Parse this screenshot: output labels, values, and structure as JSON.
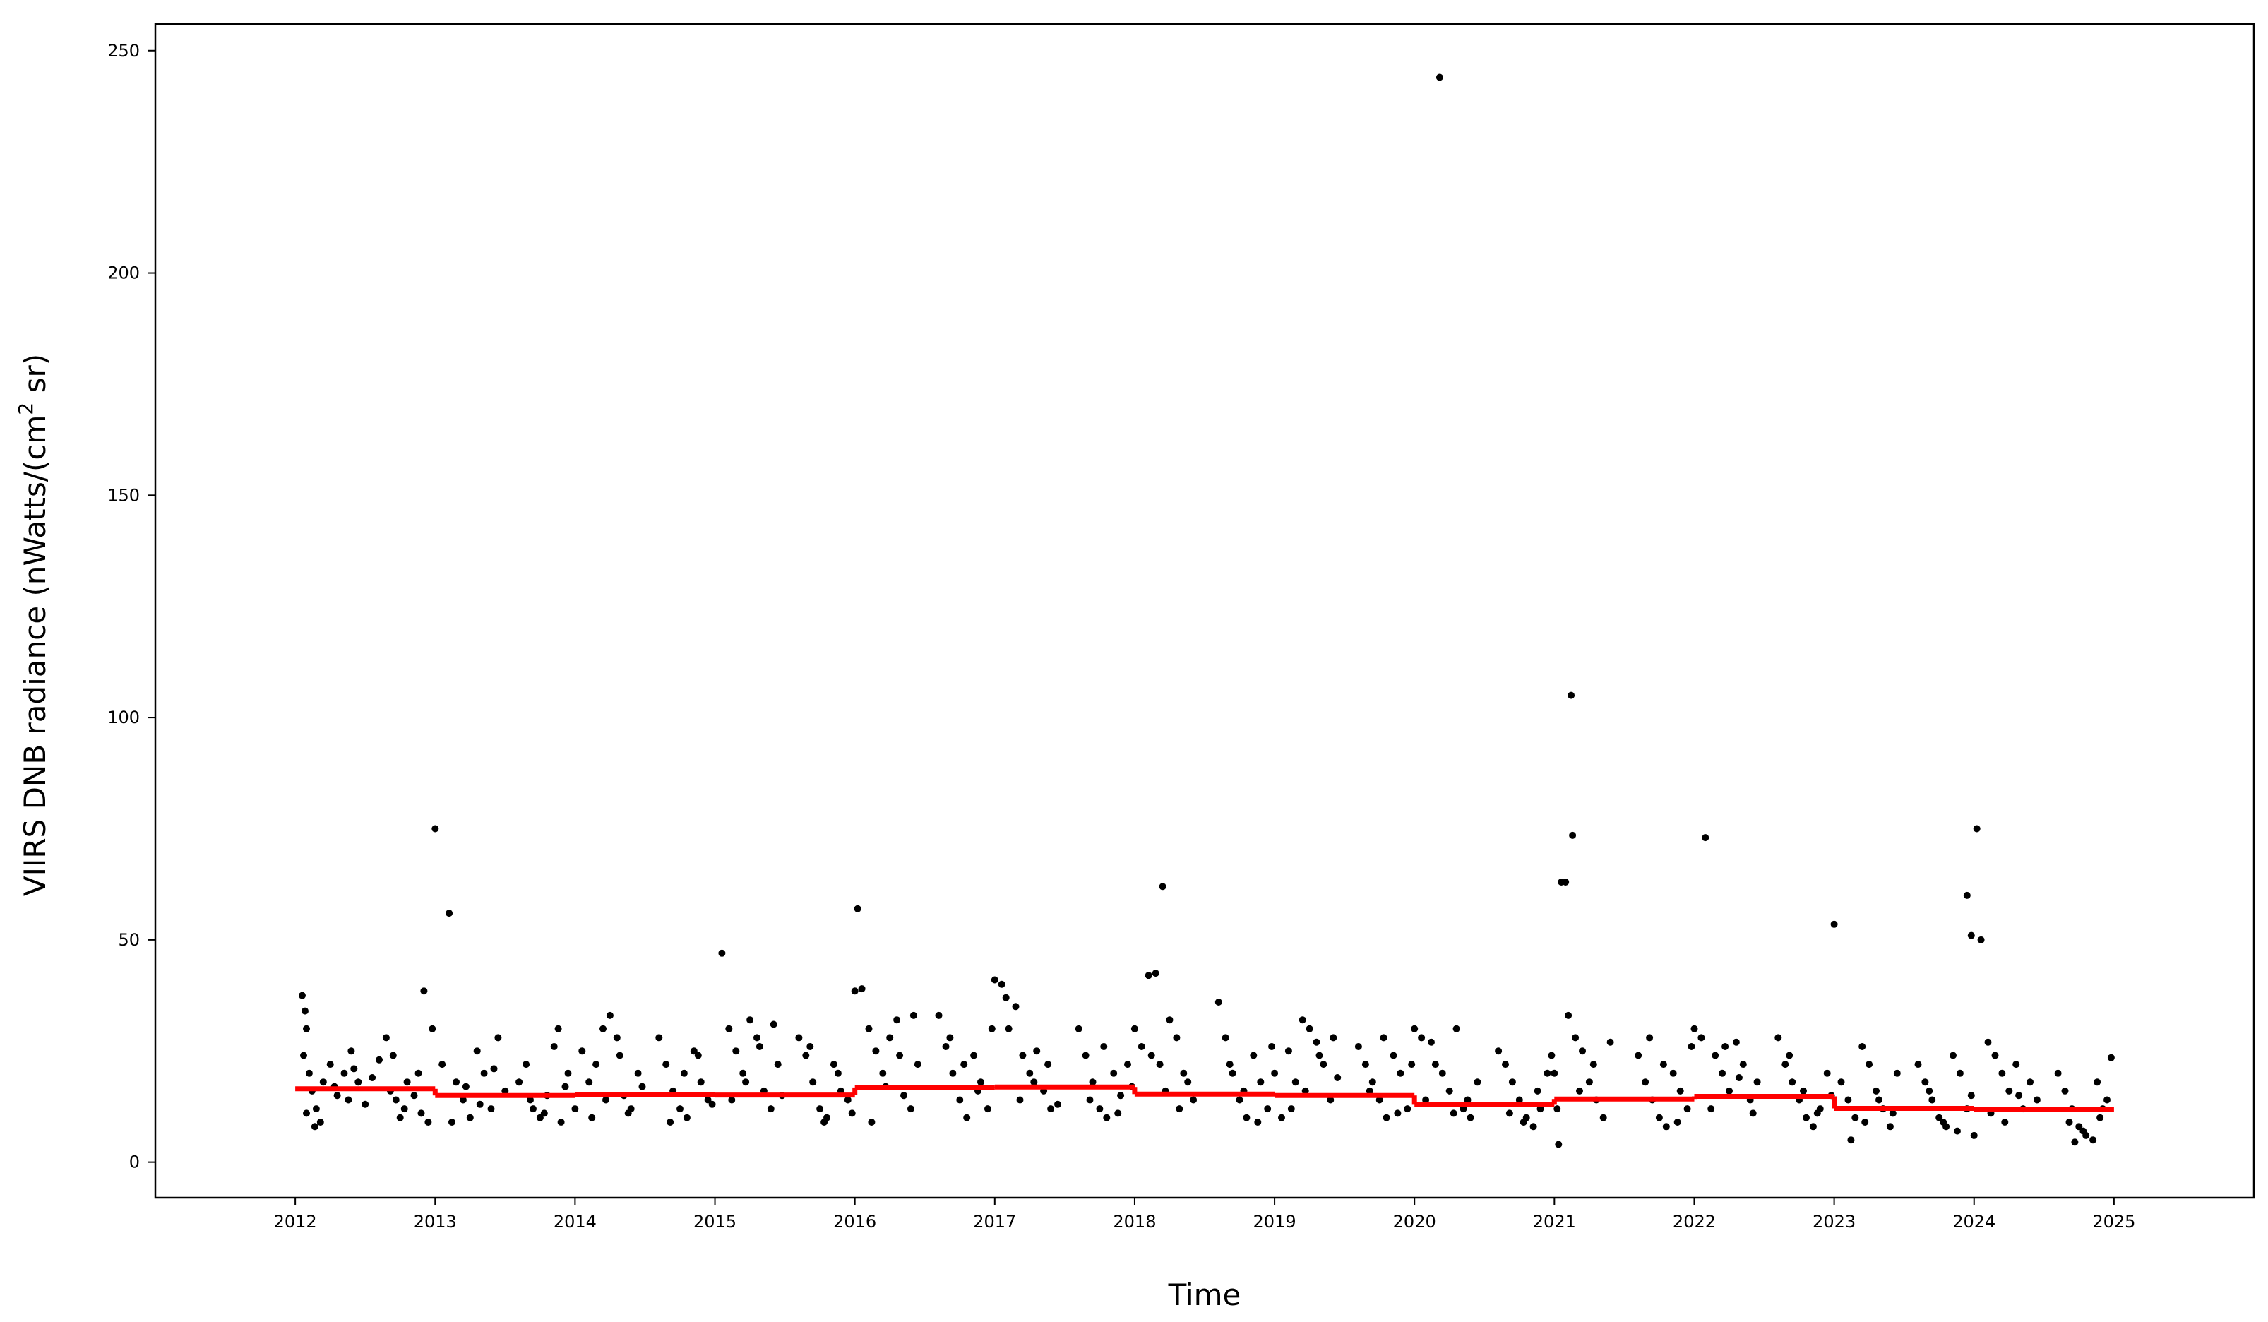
{
  "chart_data": {
    "type": "scatter",
    "title": "",
    "xlabel": "Time",
    "ylabel_main": "VIIRS DNB radiance (nWatts/(cm",
    "ylabel_sup": "2",
    "ylabel_end": " sr)",
    "xlim": [
      2011.0,
      2026.0
    ],
    "ylim": [
      -8,
      256
    ],
    "x_ticks": [
      2012,
      2013,
      2014,
      2015,
      2016,
      2017,
      2018,
      2019,
      2020,
      2021,
      2022,
      2023,
      2024,
      2025
    ],
    "x_tick_labels": [
      "2012",
      "2013",
      "2014",
      "2015",
      "2016",
      "2017",
      "2018",
      "2019",
      "2020",
      "2021",
      "2022",
      "2023",
      "2024",
      "2025"
    ],
    "y_ticks": [
      0,
      50,
      100,
      150,
      200,
      250
    ],
    "y_tick_labels": [
      "0",
      "50",
      "100",
      "150",
      "200",
      "250"
    ],
    "grid": false,
    "colors": {
      "points": "#000000",
      "annual_mean": "#ff0000"
    },
    "annual_mean": [
      {
        "start": 2012.0,
        "end": 2013.0,
        "value": 16.5
      },
      {
        "start": 2013.0,
        "end": 2014.0,
        "value": 15.0
      },
      {
        "start": 2014.0,
        "end": 2015.0,
        "value": 15.2
      },
      {
        "start": 2015.0,
        "end": 2016.0,
        "value": 15.1
      },
      {
        "start": 2016.0,
        "end": 2017.0,
        "value": 16.8
      },
      {
        "start": 2017.0,
        "end": 2018.0,
        "value": 16.9
      },
      {
        "start": 2018.0,
        "end": 2019.0,
        "value": 15.3
      },
      {
        "start": 2019.0,
        "end": 2020.0,
        "value": 15.0
      },
      {
        "start": 2020.0,
        "end": 2021.0,
        "value": 12.9
      },
      {
        "start": 2021.0,
        "end": 2022.0,
        "value": 14.2
      },
      {
        "start": 2022.0,
        "end": 2023.0,
        "value": 14.8
      },
      {
        "start": 2023.0,
        "end": 2024.0,
        "value": 12.1
      },
      {
        "start": 2024.0,
        "end": 2025.0,
        "value": 11.8
      }
    ],
    "points": [
      [
        2012.05,
        37.5
      ],
      [
        2012.07,
        34
      ],
      [
        2012.08,
        30
      ],
      [
        2012.06,
        24
      ],
      [
        2012.1,
        20
      ],
      [
        2012.12,
        16
      ],
      [
        2012.15,
        12
      ],
      [
        2012.14,
        8
      ],
      [
        2012.2,
        18
      ],
      [
        2012.25,
        22
      ],
      [
        2012.3,
        15
      ],
      [
        2012.35,
        20
      ],
      [
        2012.4,
        25
      ],
      [
        2012.45,
        18
      ],
      [
        2012.5,
        13
      ],
      [
        2012.08,
        11
      ],
      [
        2012.18,
        9
      ],
      [
        2012.28,
        17
      ],
      [
        2012.38,
        14
      ],
      [
        2012.42,
        21
      ],
      [
        2012.55,
        19
      ],
      [
        2012.6,
        23
      ],
      [
        2012.65,
        28
      ],
      [
        2012.7,
        24
      ],
      [
        2012.72,
        14
      ],
      [
        2012.75,
        10
      ],
      [
        2012.78,
        12
      ],
      [
        2012.8,
        18
      ],
      [
        2012.85,
        15
      ],
      [
        2012.9,
        11
      ],
      [
        2012.88,
        20
      ],
      [
        2012.92,
        38.5
      ],
      [
        2012.98,
        30
      ],
      [
        2012.95,
        9
      ],
      [
        2012.68,
        16
      ],
      [
        2013.0,
        75
      ],
      [
        2013.1,
        56
      ],
      [
        2013.05,
        22
      ],
      [
        2013.15,
        18
      ],
      [
        2013.2,
        14
      ],
      [
        2013.25,
        10
      ],
      [
        2013.3,
        25
      ],
      [
        2013.35,
        20
      ],
      [
        2013.4,
        12
      ],
      [
        2013.45,
        28
      ],
      [
        2013.5,
        16
      ],
      [
        2013.12,
        9
      ],
      [
        2013.22,
        17
      ],
      [
        2013.32,
        13
      ],
      [
        2013.42,
        21
      ],
      [
        2013.6,
        18
      ],
      [
        2013.65,
        22
      ],
      [
        2013.7,
        12
      ],
      [
        2013.75,
        10
      ],
      [
        2013.8,
        15
      ],
      [
        2013.85,
        26
      ],
      [
        2013.9,
        9
      ],
      [
        2013.95,
        20
      ],
      [
        2013.68,
        14
      ],
      [
        2013.78,
        11
      ],
      [
        2013.88,
        30
      ],
      [
        2013.93,
        17
      ],
      [
        2014.0,
        12
      ],
      [
        2014.05,
        25
      ],
      [
        2014.1,
        18
      ],
      [
        2014.15,
        22
      ],
      [
        2014.2,
        30
      ],
      [
        2014.25,
        33
      ],
      [
        2014.3,
        28
      ],
      [
        2014.35,
        15
      ],
      [
        2014.4,
        12
      ],
      [
        2014.45,
        20
      ],
      [
        2014.12,
        10
      ],
      [
        2014.22,
        14
      ],
      [
        2014.32,
        24
      ],
      [
        2014.38,
        11
      ],
      [
        2014.48,
        17
      ],
      [
        2014.6,
        28
      ],
      [
        2014.65,
        22
      ],
      [
        2014.7,
        16
      ],
      [
        2014.75,
        12
      ],
      [
        2014.8,
        10
      ],
      [
        2014.85,
        25
      ],
      [
        2014.9,
        18
      ],
      [
        2014.95,
        14
      ],
      [
        2014.68,
        9
      ],
      [
        2014.78,
        20
      ],
      [
        2014.88,
        24
      ],
      [
        2014.98,
        13
      ],
      [
        2015.05,
        47
      ],
      [
        2015.1,
        30
      ],
      [
        2015.15,
        25
      ],
      [
        2015.2,
        20
      ],
      [
        2015.25,
        32
      ],
      [
        2015.3,
        28
      ],
      [
        2015.35,
        16
      ],
      [
        2015.4,
        12
      ],
      [
        2015.45,
        22
      ],
      [
        2015.12,
        14
      ],
      [
        2015.22,
        18
      ],
      [
        2015.32,
        26
      ],
      [
        2015.42,
        31
      ],
      [
        2015.48,
        15
      ],
      [
        2015.6,
        28
      ],
      [
        2015.65,
        24
      ],
      [
        2015.7,
        18
      ],
      [
        2015.75,
        12
      ],
      [
        2015.8,
        10
      ],
      [
        2015.85,
        22
      ],
      [
        2015.9,
        16
      ],
      [
        2015.95,
        14
      ],
      [
        2015.68,
        26
      ],
      [
        2015.78,
        9
      ],
      [
        2015.88,
        20
      ],
      [
        2015.98,
        11
      ],
      [
        2016.0,
        38.5
      ],
      [
        2016.05,
        39
      ],
      [
        2016.02,
        57
      ],
      [
        2016.1,
        30
      ],
      [
        2016.15,
        25
      ],
      [
        2016.2,
        20
      ],
      [
        2016.25,
        28
      ],
      [
        2016.3,
        32
      ],
      [
        2016.35,
        15
      ],
      [
        2016.4,
        12
      ],
      [
        2016.45,
        22
      ],
      [
        2016.12,
        9
      ],
      [
        2016.22,
        17
      ],
      [
        2016.32,
        24
      ],
      [
        2016.42,
        33
      ],
      [
        2016.6,
        33
      ],
      [
        2016.65,
        26
      ],
      [
        2016.7,
        20
      ],
      [
        2016.75,
        14
      ],
      [
        2016.8,
        10
      ],
      [
        2016.85,
        24
      ],
      [
        2016.9,
        18
      ],
      [
        2016.95,
        12
      ],
      [
        2016.68,
        28
      ],
      [
        2016.78,
        22
      ],
      [
        2016.88,
        16
      ],
      [
        2016.98,
        30
      ],
      [
        2017.0,
        41
      ],
      [
        2017.05,
        40
      ],
      [
        2017.08,
        37
      ],
      [
        2017.15,
        35
      ],
      [
        2017.2,
        24
      ],
      [
        2017.25,
        20
      ],
      [
        2017.3,
        25
      ],
      [
        2017.35,
        16
      ],
      [
        2017.4,
        12
      ],
      [
        2017.1,
        30
      ],
      [
        2017.18,
        14
      ],
      [
        2017.28,
        18
      ],
      [
        2017.38,
        22
      ],
      [
        2017.45,
        13
      ],
      [
        2017.6,
        30
      ],
      [
        2017.65,
        24
      ],
      [
        2017.7,
        18
      ],
      [
        2017.75,
        12
      ],
      [
        2017.8,
        10
      ],
      [
        2017.85,
        20
      ],
      [
        2017.9,
        15
      ],
      [
        2017.95,
        22
      ],
      [
        2017.68,
        14
      ],
      [
        2017.78,
        26
      ],
      [
        2017.88,
        11
      ],
      [
        2017.98,
        17
      ],
      [
        2018.0,
        30
      ],
      [
        2018.1,
        42
      ],
      [
        2018.15,
        42.5
      ],
      [
        2018.2,
        62
      ],
      [
        2018.25,
        32
      ],
      [
        2018.3,
        28
      ],
      [
        2018.35,
        20
      ],
      [
        2018.12,
        24
      ],
      [
        2018.22,
        16
      ],
      [
        2018.32,
        12
      ],
      [
        2018.38,
        18
      ],
      [
        2018.42,
        14
      ],
      [
        2018.05,
        26
      ],
      [
        2018.18,
        22
      ],
      [
        2018.6,
        36
      ],
      [
        2018.65,
        28
      ],
      [
        2018.7,
        20
      ],
      [
        2018.75,
        14
      ],
      [
        2018.8,
        10
      ],
      [
        2018.85,
        24
      ],
      [
        2018.9,
        18
      ],
      [
        2018.95,
        12
      ],
      [
        2018.68,
        22
      ],
      [
        2018.78,
        16
      ],
      [
        2018.88,
        9
      ],
      [
        2018.98,
        26
      ],
      [
        2019.0,
        20
      ],
      [
        2019.1,
        25
      ],
      [
        2019.15,
        18
      ],
      [
        2019.2,
        32
      ],
      [
        2019.25,
        30
      ],
      [
        2019.3,
        27
      ],
      [
        2019.35,
        22
      ],
      [
        2019.4,
        14
      ],
      [
        2019.12,
        12
      ],
      [
        2019.22,
        16
      ],
      [
        2019.32,
        24
      ],
      [
        2019.42,
        28
      ],
      [
        2019.05,
        10
      ],
      [
        2019.45,
        19
      ],
      [
        2019.6,
        26
      ],
      [
        2019.65,
        22
      ],
      [
        2019.7,
        18
      ],
      [
        2019.75,
        14
      ],
      [
        2019.8,
        10
      ],
      [
        2019.85,
        24
      ],
      [
        2019.9,
        20
      ],
      [
        2019.95,
        12
      ],
      [
        2019.68,
        16
      ],
      [
        2019.78,
        28
      ],
      [
        2019.88,
        11
      ],
      [
        2019.98,
        22
      ],
      [
        2020.0,
        30
      ],
      [
        2020.05,
        28
      ],
      [
        2020.12,
        27
      ],
      [
        2020.18,
        244
      ],
      [
        2020.2,
        20
      ],
      [
        2020.25,
        16
      ],
      [
        2020.3,
        30
      ],
      [
        2020.35,
        12
      ],
      [
        2020.4,
        10
      ],
      [
        2020.45,
        18
      ],
      [
        2020.08,
        14
      ],
      [
        2020.15,
        22
      ],
      [
        2020.28,
        11
      ],
      [
        2020.38,
        14
      ],
      [
        2020.6,
        25
      ],
      [
        2020.65,
        22
      ],
      [
        2020.7,
        18
      ],
      [
        2020.75,
        14
      ],
      [
        2020.8,
        10
      ],
      [
        2020.85,
        8
      ],
      [
        2020.9,
        12
      ],
      [
        2020.95,
        20
      ],
      [
        2020.68,
        11
      ],
      [
        2020.78,
        9
      ],
      [
        2020.88,
        16
      ],
      [
        2020.98,
        24
      ],
      [
        2021.0,
        20
      ],
      [
        2021.05,
        63
      ],
      [
        2021.08,
        63
      ],
      [
        2021.1,
        33
      ],
      [
        2021.12,
        105
      ],
      [
        2021.13,
        73.5
      ],
      [
        2021.15,
        28
      ],
      [
        2021.2,
        25
      ],
      [
        2021.25,
        18
      ],
      [
        2021.3,
        14
      ],
      [
        2021.35,
        10
      ],
      [
        2021.4,
        27
      ],
      [
        2021.02,
        12
      ],
      [
        2021.18,
        16
      ],
      [
        2021.28,
        22
      ],
      [
        2021.03,
        4
      ],
      [
        2021.6,
        24
      ],
      [
        2021.65,
        18
      ],
      [
        2021.7,
        14
      ],
      [
        2021.75,
        10
      ],
      [
        2021.8,
        8
      ],
      [
        2021.85,
        20
      ],
      [
        2021.9,
        16
      ],
      [
        2021.95,
        12
      ],
      [
        2021.68,
        28
      ],
      [
        2021.78,
        22
      ],
      [
        2021.88,
        9
      ],
      [
        2021.98,
        26
      ],
      [
        2022.0,
        30
      ],
      [
        2022.05,
        28
      ],
      [
        2022.08,
        73
      ],
      [
        2022.15,
        24
      ],
      [
        2022.2,
        20
      ],
      [
        2022.25,
        16
      ],
      [
        2022.3,
        27
      ],
      [
        2022.35,
        22
      ],
      [
        2022.4,
        14
      ],
      [
        2022.45,
        18
      ],
      [
        2022.12,
        12
      ],
      [
        2022.22,
        26
      ],
      [
        2022.32,
        19
      ],
      [
        2022.42,
        11
      ],
      [
        2022.6,
        28
      ],
      [
        2022.65,
        22
      ],
      [
        2022.7,
        18
      ],
      [
        2022.75,
        14
      ],
      [
        2022.8,
        10
      ],
      [
        2022.85,
        8
      ],
      [
        2022.9,
        12
      ],
      [
        2022.95,
        20
      ],
      [
        2022.68,
        24
      ],
      [
        2022.78,
        16
      ],
      [
        2022.88,
        11
      ],
      [
        2022.98,
        15
      ],
      [
        2023.0,
        53.5
      ],
      [
        2023.05,
        18
      ],
      [
        2023.1,
        14
      ],
      [
        2023.15,
        10
      ],
      [
        2023.2,
        26
      ],
      [
        2023.25,
        22
      ],
      [
        2023.3,
        16
      ],
      [
        2023.35,
        12
      ],
      [
        2023.4,
        8
      ],
      [
        2023.45,
        20
      ],
      [
        2023.12,
        5
      ],
      [
        2023.22,
        9
      ],
      [
        2023.32,
        14
      ],
      [
        2023.42,
        11
      ],
      [
        2023.6,
        22
      ],
      [
        2023.65,
        18
      ],
      [
        2023.7,
        14
      ],
      [
        2023.75,
        10
      ],
      [
        2023.8,
        8
      ],
      [
        2023.85,
        24
      ],
      [
        2023.9,
        20
      ],
      [
        2023.95,
        12
      ],
      [
        2023.68,
        16
      ],
      [
        2023.78,
        9
      ],
      [
        2023.88,
        7
      ],
      [
        2023.98,
        15
      ],
      [
        2023.95,
        60
      ],
      [
        2023.98,
        51
      ],
      [
        2024.05,
        50
      ],
      [
        2024.02,
        75
      ],
      [
        2024.1,
        27
      ],
      [
        2024.15,
        24
      ],
      [
        2024.2,
        20
      ],
      [
        2024.25,
        16
      ],
      [
        2024.3,
        22
      ],
      [
        2024.35,
        12
      ],
      [
        2024.4,
        18
      ],
      [
        2024.45,
        14
      ],
      [
        2024.12,
        11
      ],
      [
        2024.22,
        9
      ],
      [
        2024.32,
        15
      ],
      [
        2024.0,
        6
      ],
      [
        2024.6,
        20
      ],
      [
        2024.65,
        16
      ],
      [
        2024.7,
        12
      ],
      [
        2024.75,
        8
      ],
      [
        2024.8,
        6
      ],
      [
        2024.85,
        5
      ],
      [
        2024.9,
        10
      ],
      [
        2024.95,
        14
      ],
      [
        2024.98,
        23.5
      ],
      [
        2024.68,
        9
      ],
      [
        2024.78,
        7
      ],
      [
        2024.88,
        18
      ],
      [
        2024.92,
        12
      ],
      [
        2024.72,
        4.5
      ]
    ]
  }
}
